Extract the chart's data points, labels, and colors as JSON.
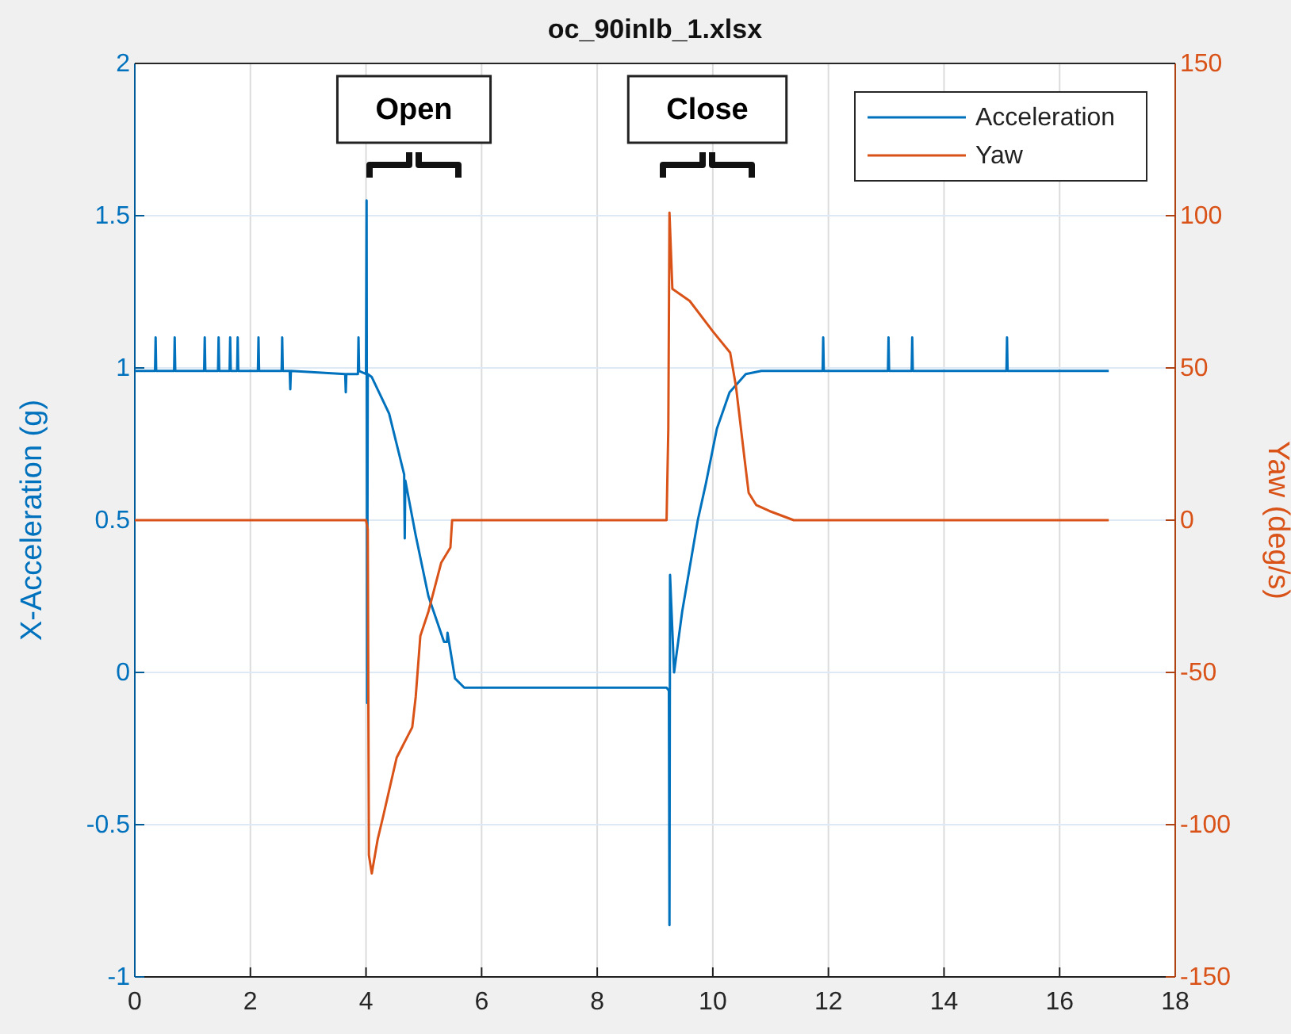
{
  "chart_data": {
    "type": "line",
    "title": "oc_90inlb_1.xlsx",
    "ylabel": "X-Acceleration (g)",
    "y2label": "Yaw (deg/s)",
    "xlim": [
      0,
      18
    ],
    "xticks": [
      0,
      2,
      4,
      6,
      8,
      10,
      12,
      14,
      16,
      18
    ],
    "ylim": [
      -1,
      2
    ],
    "yticks": [
      -1,
      -0.5,
      0,
      0.5,
      1,
      1.5,
      2
    ],
    "y2lim": [
      -150,
      150
    ],
    "y2ticks": [
      -150,
      -100,
      -50,
      0,
      50,
      100,
      150
    ],
    "grid": true,
    "legend": "top right",
    "annotations": [
      "Open",
      "Close"
    ],
    "series": [
      {
        "name": "Acceleration",
        "color": "#0072bd",
        "x": [
          0,
          0.35,
          0.36,
          0.37,
          0.68,
          0.69,
          0.7,
          1.2,
          1.21,
          1.22,
          1.44,
          1.45,
          1.46,
          1.64,
          1.65,
          1.66,
          1.77,
          1.78,
          1.79,
          2.13,
          2.14,
          2.15,
          2.54,
          2.55,
          2.56,
          2.68,
          2.69,
          2.7,
          3.64,
          3.65,
          3.66,
          3.86,
          3.87,
          3.88,
          4.0,
          4.01,
          4.02,
          4.03,
          4.1,
          4.4,
          4.66,
          4.67,
          4.68,
          4.86,
          5.08,
          5.35,
          5.4,
          5.41,
          5.54,
          5.7,
          6.5,
          7.5,
          8.5,
          9.2,
          9.24,
          9.25,
          9.26,
          9.33,
          9.47,
          9.74,
          9.88,
          10.07,
          10.29,
          10.57,
          10.84,
          11.9,
          11.91,
          11.92,
          13.03,
          13.04,
          13.05,
          13.44,
          13.45,
          13.46,
          15.08,
          15.09,
          15.1,
          16.85
        ],
        "values": [
          0.99,
          0.99,
          1.1,
          0.99,
          0.99,
          1.1,
          0.99,
          0.99,
          1.1,
          0.99,
          0.99,
          1.1,
          0.99,
          0.99,
          1.1,
          0.99,
          0.99,
          1.1,
          0.99,
          0.99,
          1.1,
          0.99,
          0.99,
          1.1,
          0.99,
          0.99,
          0.93,
          0.99,
          0.98,
          0.92,
          0.98,
          0.98,
          1.1,
          0.99,
          0.98,
          1.55,
          -0.1,
          0.98,
          0.97,
          0.85,
          0.65,
          0.44,
          0.63,
          0.45,
          0.25,
          0.1,
          0.1,
          0.13,
          -0.02,
          -0.05,
          -0.05,
          -0.05,
          -0.05,
          -0.05,
          -0.06,
          -0.83,
          0.32,
          0.0,
          0.2,
          0.5,
          0.62,
          0.8,
          0.92,
          0.98,
          0.99,
          0.99,
          1.1,
          0.99,
          0.99,
          1.1,
          0.99,
          0.99,
          1.1,
          0.99,
          0.99,
          1.1,
          0.99,
          0.99
        ]
      },
      {
        "name": "Yaw",
        "color": "#d95319",
        "axis": "y2",
        "x": [
          0,
          1,
          2,
          3,
          4.0,
          4.03,
          4.05,
          4.1,
          4.2,
          4.3,
          4.53,
          4.8,
          4.86,
          4.94,
          5.08,
          5.3,
          5.46,
          5.49,
          6.5,
          7.5,
          8.5,
          9.2,
          9.23,
          9.25,
          9.3,
          9.6,
          10.0,
          10.3,
          10.4,
          10.55,
          10.62,
          10.75,
          10.98,
          11.4,
          12.5,
          14,
          15.5,
          16.85
        ],
        "values": [
          0,
          0,
          0,
          0,
          0,
          -3,
          -110,
          -116,
          -105,
          -97,
          -78,
          -68,
          -58,
          -38,
          -30,
          -14,
          -9,
          0,
          0,
          0,
          0,
          0,
          30,
          101,
          76,
          72,
          62,
          55,
          44,
          20,
          9,
          5,
          3,
          0,
          0,
          0,
          0,
          0
        ]
      }
    ]
  }
}
